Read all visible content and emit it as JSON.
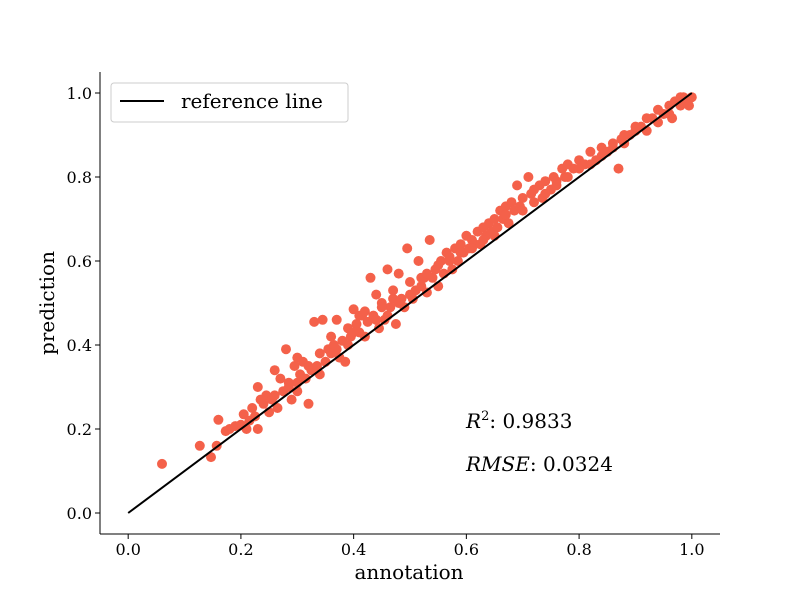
{
  "chart_data": {
    "type": "scatter",
    "xlabel": "annotation",
    "ylabel": "prediction",
    "xlim": [
      -0.05,
      1.05
    ],
    "ylim": [
      -0.05,
      1.05
    ],
    "xticks": [
      0.0,
      0.2,
      0.4,
      0.6,
      0.8,
      1.0
    ],
    "yticks": [
      0.0,
      0.2,
      0.4,
      0.6,
      0.8,
      1.0
    ],
    "xtick_labels": [
      "0.0",
      "0.2",
      "0.4",
      "0.6",
      "0.8",
      "1.0"
    ],
    "ytick_labels": [
      "0.0",
      "0.2",
      "0.4",
      "0.6",
      "0.8",
      "1.0"
    ],
    "grid": false,
    "legend": {
      "entries": [
        "reference line"
      ],
      "position": "top-left"
    },
    "point_color": "#f4614a",
    "line_color": "#000000",
    "reference_line": {
      "name": "reference line",
      "x": [
        0.0,
        1.0
      ],
      "y": [
        0.0,
        1.0
      ]
    },
    "annotations": {
      "r2_label": "R",
      "r2_sup": "2",
      "r2_value": ": 0.9833",
      "rmse_label": "RMSE",
      "rmse_value": ": 0.0324"
    },
    "points": [
      [
        0.06,
        0.117
      ],
      [
        0.127,
        0.16
      ],
      [
        0.147,
        0.133
      ],
      [
        0.157,
        0.16
      ],
      [
        0.16,
        0.222
      ],
      [
        0.173,
        0.195
      ],
      [
        0.18,
        0.2
      ],
      [
        0.19,
        0.207
      ],
      [
        0.2,
        0.21
      ],
      [
        0.205,
        0.235
      ],
      [
        0.21,
        0.2
      ],
      [
        0.215,
        0.22
      ],
      [
        0.22,
        0.25
      ],
      [
        0.225,
        0.23
      ],
      [
        0.23,
        0.3
      ],
      [
        0.23,
        0.2
      ],
      [
        0.24,
        0.26
      ],
      [
        0.245,
        0.28
      ],
      [
        0.25,
        0.24
      ],
      [
        0.255,
        0.27
      ],
      [
        0.26,
        0.34
      ],
      [
        0.265,
        0.25
      ],
      [
        0.27,
        0.32
      ],
      [
        0.275,
        0.29
      ],
      [
        0.28,
        0.39
      ],
      [
        0.285,
        0.3
      ],
      [
        0.29,
        0.27
      ],
      [
        0.295,
        0.35
      ],
      [
        0.3,
        0.31
      ],
      [
        0.3,
        0.37
      ],
      [
        0.305,
        0.33
      ],
      [
        0.31,
        0.36
      ],
      [
        0.315,
        0.32
      ],
      [
        0.32,
        0.26
      ],
      [
        0.325,
        0.34
      ],
      [
        0.33,
        0.455
      ],
      [
        0.335,
        0.35
      ],
      [
        0.34,
        0.38
      ],
      [
        0.345,
        0.46
      ],
      [
        0.35,
        0.36
      ],
      [
        0.355,
        0.39
      ],
      [
        0.36,
        0.38
      ],
      [
        0.365,
        0.4
      ],
      [
        0.37,
        0.46
      ],
      [
        0.375,
        0.37
      ],
      [
        0.38,
        0.41
      ],
      [
        0.385,
        0.36
      ],
      [
        0.39,
        0.44
      ],
      [
        0.395,
        0.42
      ],
      [
        0.4,
        0.485
      ],
      [
        0.405,
        0.45
      ],
      [
        0.41,
        0.43
      ],
      [
        0.415,
        0.47
      ],
      [
        0.42,
        0.42
      ],
      [
        0.425,
        0.455
      ],
      [
        0.43,
        0.56
      ],
      [
        0.435,
        0.47
      ],
      [
        0.44,
        0.52
      ],
      [
        0.445,
        0.44
      ],
      [
        0.45,
        0.5
      ],
      [
        0.455,
        0.46
      ],
      [
        0.46,
        0.58
      ],
      [
        0.465,
        0.49
      ],
      [
        0.47,
        0.53
      ],
      [
        0.475,
        0.45
      ],
      [
        0.48,
        0.57
      ],
      [
        0.485,
        0.51
      ],
      [
        0.49,
        0.49
      ],
      [
        0.495,
        0.63
      ],
      [
        0.5,
        0.55
      ],
      [
        0.505,
        0.51
      ],
      [
        0.51,
        0.53
      ],
      [
        0.515,
        0.6
      ],
      [
        0.52,
        0.54
      ],
      [
        0.525,
        0.56
      ],
      [
        0.53,
        0.525
      ],
      [
        0.535,
        0.65
      ],
      [
        0.54,
        0.56
      ],
      [
        0.545,
        0.58
      ],
      [
        0.55,
        0.54
      ],
      [
        0.555,
        0.6
      ],
      [
        0.56,
        0.57
      ],
      [
        0.565,
        0.62
      ],
      [
        0.57,
        0.61
      ],
      [
        0.575,
        0.58
      ],
      [
        0.58,
        0.63
      ],
      [
        0.585,
        0.6
      ],
      [
        0.59,
        0.64
      ],
      [
        0.595,
        0.62
      ],
      [
        0.6,
        0.66
      ],
      [
        0.605,
        0.63
      ],
      [
        0.61,
        0.65
      ],
      [
        0.615,
        0.64
      ],
      [
        0.62,
        0.67
      ],
      [
        0.625,
        0.64
      ],
      [
        0.63,
        0.68
      ],
      [
        0.635,
        0.66
      ],
      [
        0.64,
        0.69
      ],
      [
        0.645,
        0.67
      ],
      [
        0.65,
        0.7
      ],
      [
        0.655,
        0.68
      ],
      [
        0.66,
        0.72
      ],
      [
        0.665,
        0.7
      ],
      [
        0.67,
        0.73
      ],
      [
        0.675,
        0.69
      ],
      [
        0.68,
        0.74
      ],
      [
        0.685,
        0.72
      ],
      [
        0.69,
        0.78
      ],
      [
        0.695,
        0.73
      ],
      [
        0.7,
        0.75
      ],
      [
        0.71,
        0.8
      ],
      [
        0.715,
        0.76
      ],
      [
        0.72,
        0.77
      ],
      [
        0.73,
        0.78
      ],
      [
        0.735,
        0.75
      ],
      [
        0.74,
        0.79
      ],
      [
        0.75,
        0.77
      ],
      [
        0.755,
        0.8
      ],
      [
        0.76,
        0.79
      ],
      [
        0.77,
        0.82
      ],
      [
        0.775,
        0.8
      ],
      [
        0.78,
        0.83
      ],
      [
        0.79,
        0.82
      ],
      [
        0.8,
        0.84
      ],
      [
        0.81,
        0.83
      ],
      [
        0.82,
        0.86
      ],
      [
        0.83,
        0.84
      ],
      [
        0.84,
        0.87
      ],
      [
        0.85,
        0.86
      ],
      [
        0.86,
        0.88
      ],
      [
        0.87,
        0.82
      ],
      [
        0.875,
        0.89
      ],
      [
        0.88,
        0.88
      ],
      [
        0.89,
        0.9
      ],
      [
        0.9,
        0.91
      ],
      [
        0.91,
        0.92
      ],
      [
        0.92,
        0.91
      ],
      [
        0.93,
        0.94
      ],
      [
        0.94,
        0.93
      ],
      [
        0.95,
        0.95
      ],
      [
        0.96,
        0.97
      ],
      [
        0.965,
        0.94
      ],
      [
        0.97,
        0.98
      ],
      [
        0.98,
        0.97
      ],
      [
        0.985,
        0.99
      ],
      [
        0.99,
        0.98
      ],
      [
        0.995,
        0.97
      ],
      [
        1.0,
        0.99
      ],
      [
        0.235,
        0.27
      ],
      [
        0.26,
        0.28
      ],
      [
        0.285,
        0.31
      ],
      [
        0.3,
        0.29
      ],
      [
        0.32,
        0.35
      ],
      [
        0.34,
        0.33
      ],
      [
        0.36,
        0.42
      ],
      [
        0.37,
        0.39
      ],
      [
        0.39,
        0.4
      ],
      [
        0.4,
        0.43
      ],
      [
        0.41,
        0.47
      ],
      [
        0.42,
        0.48
      ],
      [
        0.44,
        0.46
      ],
      [
        0.45,
        0.49
      ],
      [
        0.46,
        0.47
      ],
      [
        0.47,
        0.51
      ],
      [
        0.48,
        0.5
      ],
      [
        0.5,
        0.52
      ],
      [
        0.52,
        0.56
      ],
      [
        0.53,
        0.57
      ],
      [
        0.55,
        0.59
      ],
      [
        0.57,
        0.6
      ],
      [
        0.59,
        0.62
      ],
      [
        0.61,
        0.63
      ],
      [
        0.63,
        0.65
      ],
      [
        0.65,
        0.66
      ],
      [
        0.67,
        0.71
      ],
      [
        0.7,
        0.72
      ],
      [
        0.72,
        0.74
      ],
      [
        0.74,
        0.76
      ],
      [
        0.76,
        0.78
      ],
      [
        0.78,
        0.8
      ],
      [
        0.8,
        0.82
      ],
      [
        0.82,
        0.83
      ],
      [
        0.84,
        0.85
      ],
      [
        0.86,
        0.87
      ],
      [
        0.88,
        0.9
      ],
      [
        0.9,
        0.92
      ],
      [
        0.92,
        0.94
      ],
      [
        0.94,
        0.96
      ],
      [
        0.96,
        0.95
      ],
      [
        0.98,
        0.99
      ]
    ]
  }
}
